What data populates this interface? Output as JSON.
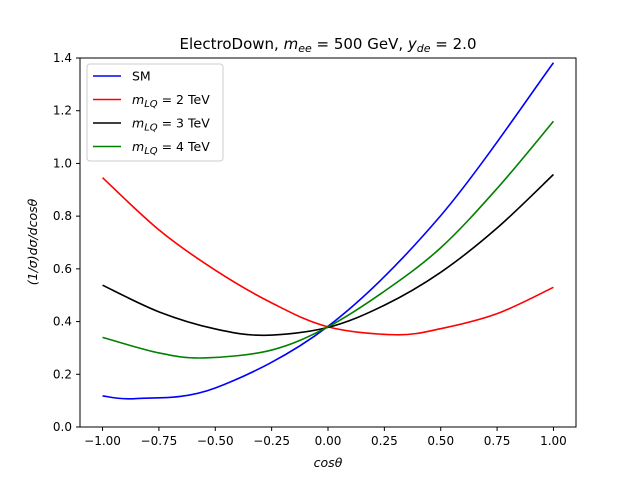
{
  "chart_data": {
    "type": "line",
    "title": "ElectroDown, m_ee = 500 GeV, y_de = 2.0",
    "title_parts": {
      "prefix": "ElectroDown, ",
      "m_sym": "m",
      "m_sub": "ee",
      "m_value": " = 500 GeV, ",
      "y_sym": "y",
      "y_sub": "de",
      "y_value": " = 2.0"
    },
    "xlabel": "cosθ",
    "ylabel": "(1/σ)dσ/dcosθ",
    "xlim": [
      -1.1,
      1.1
    ],
    "ylim": [
      0.0,
      1.4
    ],
    "xticks": [
      -1.0,
      -0.75,
      -0.5,
      -0.25,
      0.0,
      0.25,
      0.5,
      0.75,
      1.0
    ],
    "xtick_labels": [
      "−1.00",
      "−0.75",
      "−0.50",
      "−0.25",
      "0.00",
      "0.25",
      "0.50",
      "0.75",
      "1.00"
    ],
    "yticks": [
      0.0,
      0.2,
      0.4,
      0.6,
      0.8,
      1.0,
      1.2,
      1.4
    ],
    "ytick_labels": [
      "0.0",
      "0.2",
      "0.4",
      "0.6",
      "0.8",
      "1.0",
      "1.2",
      "1.4"
    ],
    "grid": false,
    "legend_position": "top-left",
    "series": [
      {
        "name": "SM",
        "legend_text": "SM",
        "color": "#0000ff",
        "x": [
          -1.0,
          -0.85,
          -0.5,
          0.0,
          0.5,
          1.0
        ],
        "y": [
          0.118,
          0.108,
          0.148,
          0.382,
          0.802,
          1.382
        ]
      },
      {
        "name": "m_LQ = 2 TeV",
        "legend_sym": "m",
        "legend_sub": "LQ",
        "legend_value": " = 2 TeV",
        "color": "#ff0000",
        "x": [
          -1.0,
          -0.75,
          -0.5,
          -0.25,
          0.0,
          0.3,
          0.5,
          0.75,
          1.0
        ],
        "y": [
          0.946,
          0.748,
          0.595,
          0.471,
          0.38,
          0.35,
          0.373,
          0.43,
          0.53
        ]
      },
      {
        "name": "m_LQ = 3 TeV",
        "legend_sym": "m",
        "legend_sub": "LQ",
        "legend_value": " = 3 TeV",
        "color": "#000000",
        "x": [
          -1.0,
          -0.75,
          -0.5,
          -0.28,
          0.0,
          0.25,
          0.5,
          0.75,
          1.0
        ],
        "y": [
          0.538,
          0.437,
          0.372,
          0.348,
          0.378,
          0.462,
          0.587,
          0.755,
          0.958
        ]
      },
      {
        "name": "m_LQ = 4 TeV",
        "legend_sym": "m",
        "legend_sub": "LQ",
        "legend_value": " = 4 TeV",
        "color": "#008000",
        "x": [
          -1.0,
          -0.75,
          -0.55,
          -0.25,
          0.0,
          0.25,
          0.5,
          0.75,
          1.0
        ],
        "y": [
          0.34,
          0.281,
          0.262,
          0.292,
          0.38,
          0.515,
          0.68,
          0.905,
          1.16
        ]
      }
    ]
  }
}
